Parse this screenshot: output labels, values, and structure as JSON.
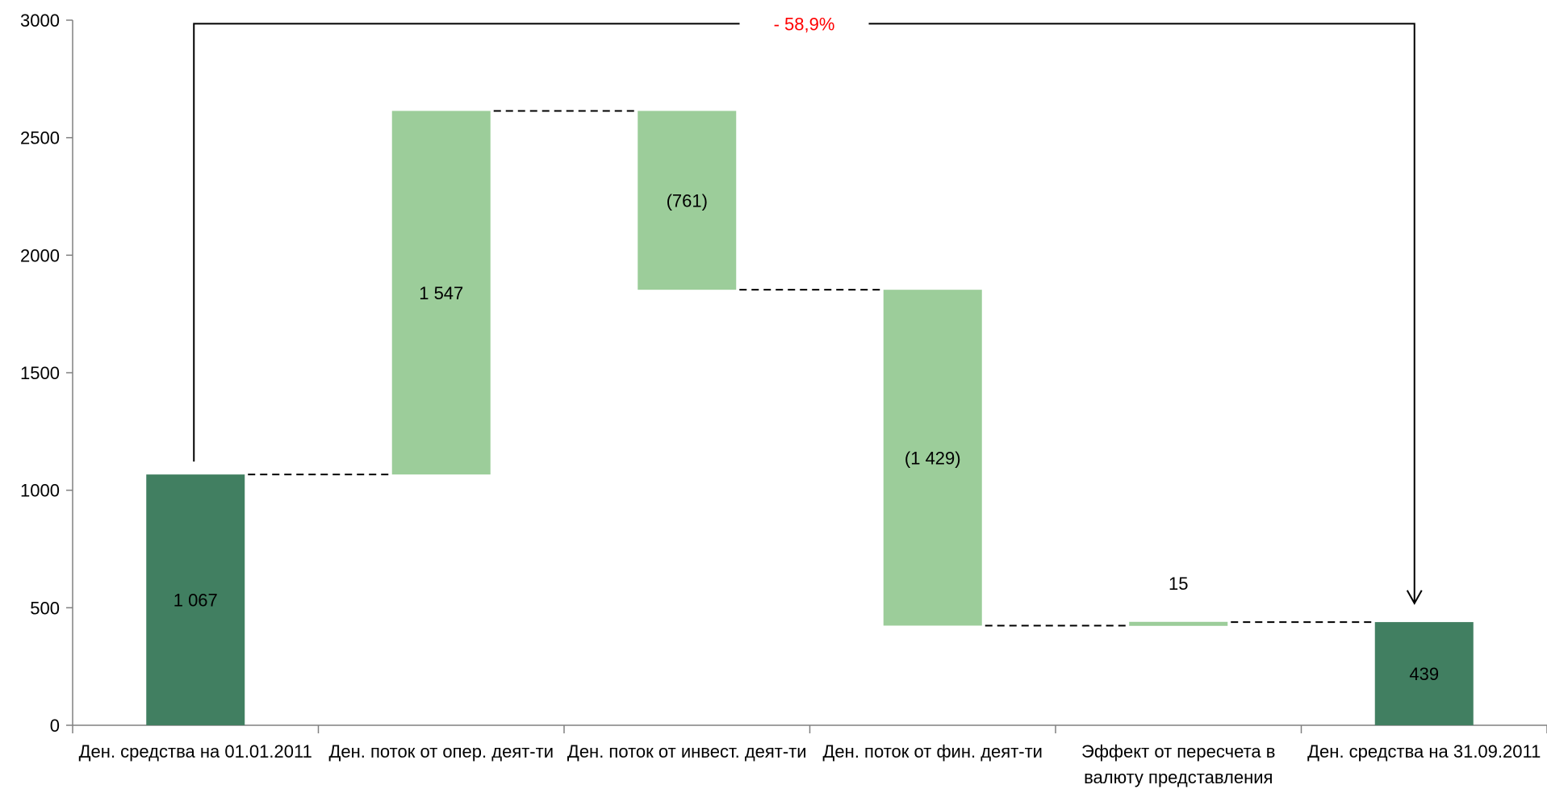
{
  "chart_data": {
    "type": "waterfall",
    "ylim": [
      0,
      3000
    ],
    "yticks": [
      0,
      500,
      1000,
      1500,
      2000,
      2500,
      3000
    ],
    "grid": false,
    "categories": [
      [
        "Ден. средства на 01.01.2011"
      ],
      [
        "Ден. поток от опер. деят-ти"
      ],
      [
        "Ден. поток от инвест. деят-ти"
      ],
      [
        "Ден. поток от фин. деят-ти"
      ],
      [
        "Эффект от пересчета в",
        "валюту представления"
      ],
      [
        "Ден. средства на 31.09.2011"
      ]
    ],
    "bars": [
      {
        "kind": "total",
        "start": 0,
        "end": 1067,
        "value": 1067,
        "label": "1 067"
      },
      {
        "kind": "delta",
        "start": 1067,
        "end": 2614,
        "value": 1547,
        "label": "1 547"
      },
      {
        "kind": "delta",
        "start": 2614,
        "end": 1853,
        "value": -761,
        "label": "(761)"
      },
      {
        "kind": "delta",
        "start": 1853,
        "end": 424,
        "value": -1429,
        "label": "(1 429)"
      },
      {
        "kind": "delta",
        "start": 424,
        "end": 439,
        "value": 15,
        "label": "15"
      },
      {
        "kind": "total",
        "start": 0,
        "end": 439,
        "value": 439,
        "label": "439"
      }
    ],
    "change_annotation": {
      "text": "- 58,9%",
      "color": "#ff0000"
    },
    "colors": {
      "total": "#417f61",
      "delta": "#9ccd9a"
    }
  }
}
